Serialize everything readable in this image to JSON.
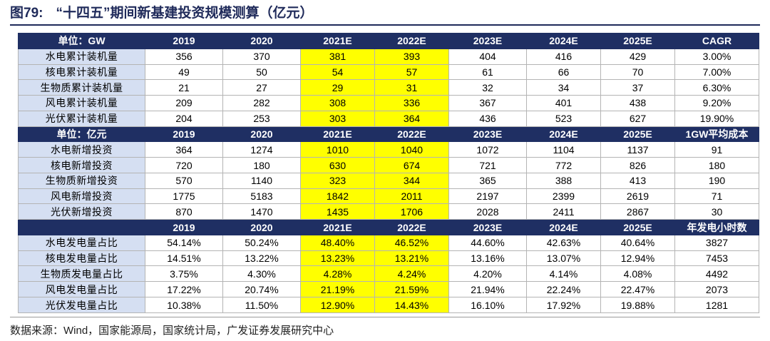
{
  "figure": {
    "number": "图79:",
    "title": "“十四五”期间新基建投资规模测算（亿元）"
  },
  "years": [
    "2019",
    "2020",
    "2021E",
    "2022E",
    "2023E",
    "2024E",
    "2025E"
  ],
  "sections": [
    {
      "header_label": "单位：GW",
      "extra_header": "CAGR",
      "rows": [
        {
          "label": "水电累计装机量",
          "values": [
            "356",
            "370",
            "381",
            "393",
            "404",
            "416",
            "429"
          ],
          "extra": "3.00%"
        },
        {
          "label": "核电累计装机量",
          "values": [
            "49",
            "50",
            "54",
            "57",
            "61",
            "66",
            "70"
          ],
          "extra": "7.00%"
        },
        {
          "label": "生物质累计装机量",
          "values": [
            "21",
            "27",
            "29",
            "31",
            "32",
            "34",
            "37"
          ],
          "extra": "6.30%"
        },
        {
          "label": "风电累计装机量",
          "values": [
            "209",
            "282",
            "308",
            "336",
            "367",
            "401",
            "438"
          ],
          "extra": "9.20%"
        },
        {
          "label": "光伏累计装机量",
          "values": [
            "204",
            "253",
            "303",
            "364",
            "436",
            "523",
            "627"
          ],
          "extra": "19.90%"
        }
      ]
    },
    {
      "header_label": "单位：亿元",
      "extra_header": "1GW平均成本",
      "rows": [
        {
          "label": "水电新增投资",
          "values": [
            "364",
            "1274",
            "1010",
            "1040",
            "1072",
            "1104",
            "1137"
          ],
          "extra": "91"
        },
        {
          "label": "核电新增投资",
          "values": [
            "720",
            "180",
            "630",
            "674",
            "721",
            "772",
            "826"
          ],
          "extra": "180"
        },
        {
          "label": "生物质新增投资",
          "values": [
            "570",
            "1140",
            "323",
            "344",
            "365",
            "388",
            "413"
          ],
          "extra": "190"
        },
        {
          "label": "风电新增投资",
          "values": [
            "1775",
            "5183",
            "1842",
            "2011",
            "2197",
            "2399",
            "2619"
          ],
          "extra": "71"
        },
        {
          "label": "光伏新增投资",
          "values": [
            "870",
            "1470",
            "1435",
            "1706",
            "2028",
            "2411",
            "2867"
          ],
          "extra": "30"
        }
      ]
    },
    {
      "header_label": "",
      "extra_header": "年发电小时数",
      "rows": [
        {
          "label": "水电发电量占比",
          "values": [
            "54.14%",
            "50.24%",
            "48.40%",
            "46.52%",
            "44.60%",
            "42.63%",
            "40.64%"
          ],
          "extra": "3827"
        },
        {
          "label": "核电发电量占比",
          "values": [
            "14.51%",
            "13.22%",
            "13.23%",
            "13.21%",
            "13.16%",
            "13.07%",
            "12.94%"
          ],
          "extra": "7453"
        },
        {
          "label": "生物质发电量占比",
          "values": [
            "3.75%",
            "4.30%",
            "4.28%",
            "4.24%",
            "4.20%",
            "4.14%",
            "4.08%"
          ],
          "extra": "4492"
        },
        {
          "label": "风电发电量占比",
          "values": [
            "17.22%",
            "20.74%",
            "21.19%",
            "21.59%",
            "21.94%",
            "22.24%",
            "22.47%"
          ],
          "extra": "2073"
        },
        {
          "label": "光伏发电量占比",
          "values": [
            "10.38%",
            "11.50%",
            "12.90%",
            "14.43%",
            "16.10%",
            "17.92%",
            "19.88%"
          ],
          "extra": "1281"
        }
      ]
    }
  ],
  "highlight_color": "#ffff00",
  "highlight_columns": [
    2,
    3
  ],
  "source": "数据来源：Wind，国家能源局，国家统计局，广发证券发展研究中心"
}
